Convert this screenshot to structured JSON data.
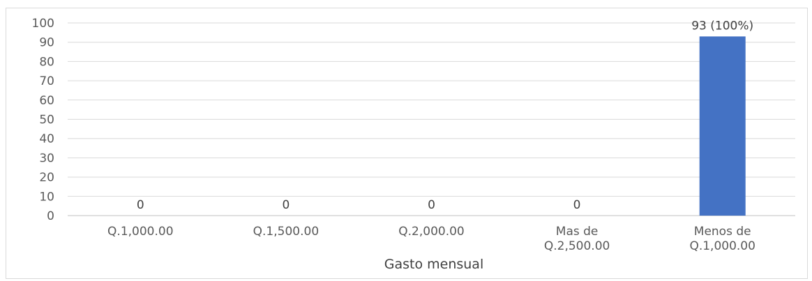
{
  "chart_data": {
    "type": "bar",
    "categories": [
      [
        "Q.1,000.00"
      ],
      [
        "Q.1,500.00"
      ],
      [
        "Q.2,000.00"
      ],
      [
        "Mas de",
        "Q.2,500.00"
      ],
      [
        "Menos de",
        "Q.1,000.00"
      ]
    ],
    "values": [
      0,
      0,
      0,
      0,
      93
    ],
    "data_labels": [
      "0",
      "0",
      "0",
      "0",
      "93 (100%)"
    ],
    "xlabel": "Gasto mensual",
    "ylabel": "",
    "ylim": [
      0,
      100
    ],
    "yticks": [
      0,
      10,
      20,
      30,
      40,
      50,
      60,
      70,
      80,
      90,
      100
    ],
    "bar_color": "#4472C4",
    "grid": true,
    "legend": "none"
  }
}
